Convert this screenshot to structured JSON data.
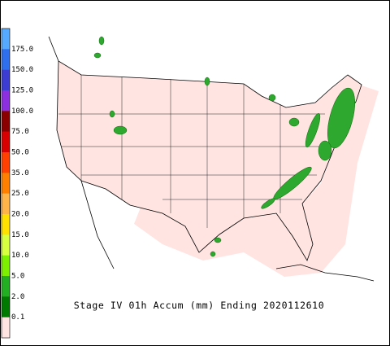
{
  "legend": {
    "labels": [
      "175.0",
      "150.0",
      "125.0",
      "100.0",
      "75.0",
      "50.0",
      "35.0",
      "25.0",
      "20.0",
      "15.0",
      "10.0",
      "5.0",
      "2.0",
      "0.1"
    ],
    "colors": [
      "#55aaff",
      "#2f6fee",
      "#3c3cd2",
      "#8c2fe0",
      "#8a0000",
      "#d80000",
      "#ff4000",
      "#ff8000",
      "#ffb44a",
      "#ffe000",
      "#d8ff40",
      "#7cf000",
      "#22b022",
      "#007a00",
      "#ffe4e1"
    ]
  },
  "caption": "Stage IV 01h Accum (mm) Ending 2020112610"
}
